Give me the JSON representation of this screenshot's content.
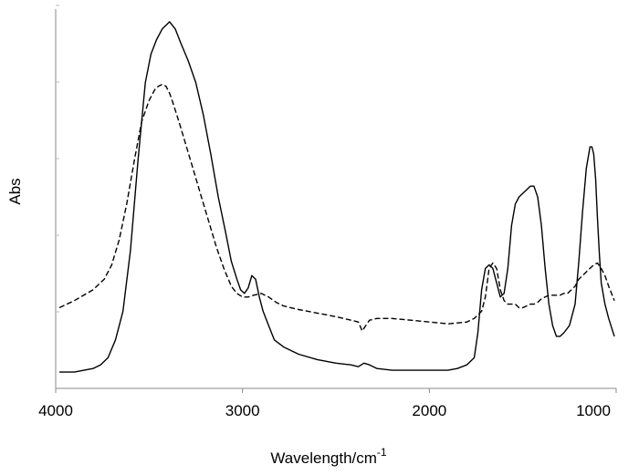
{
  "chart_data": {
    "type": "line",
    "title": "",
    "xlabel": "Wavelength/cm",
    "xlabel_superscript": "-1",
    "ylabel": "Abs",
    "xlim": [
      4000,
      1000
    ],
    "x_reversed": true,
    "x_ticks": [
      "4000",
      "3000",
      "2000",
      "1000"
    ],
    "y_ticks_labeled": false,
    "grid": false,
    "legend": "none",
    "series": [
      {
        "style": "solid",
        "color": "#000000",
        "x": [
          3980,
          3900,
          3800,
          3760,
          3720,
          3680,
          3640,
          3600,
          3560,
          3520,
          3490,
          3460,
          3430,
          3410,
          3390,
          3360,
          3330,
          3290,
          3250,
          3210,
          3170,
          3130,
          3090,
          3060,
          3030,
          3010,
          2990,
          2970,
          2950,
          2930,
          2910,
          2890,
          2860,
          2830,
          2780,
          2700,
          2600,
          2500,
          2420,
          2380,
          2350,
          2320,
          2280,
          2200,
          2100,
          2000,
          1900,
          1850,
          1800,
          1760,
          1740,
          1720,
          1700,
          1680,
          1660,
          1640,
          1620,
          1600,
          1580,
          1560,
          1540,
          1520,
          1500,
          1480,
          1460,
          1440,
          1420,
          1400,
          1380,
          1360,
          1340,
          1320,
          1300,
          1280,
          1250,
          1220,
          1200,
          1180,
          1160,
          1140,
          1130,
          1120,
          1110,
          1100,
          1090,
          1080,
          1060,
          1040,
          1010
        ],
        "y": [
          0.01,
          0.01,
          0.02,
          0.03,
          0.05,
          0.1,
          0.18,
          0.35,
          0.6,
          0.82,
          0.9,
          0.94,
          0.97,
          0.98,
          0.99,
          0.97,
          0.93,
          0.88,
          0.82,
          0.73,
          0.62,
          0.5,
          0.4,
          0.32,
          0.27,
          0.24,
          0.23,
          0.245,
          0.28,
          0.27,
          0.22,
          0.18,
          0.14,
          0.1,
          0.08,
          0.06,
          0.045,
          0.035,
          0.03,
          0.025,
          0.035,
          0.03,
          0.02,
          0.015,
          0.015,
          0.015,
          0.015,
          0.02,
          0.03,
          0.05,
          0.12,
          0.24,
          0.3,
          0.31,
          0.3,
          0.26,
          0.22,
          0.23,
          0.3,
          0.42,
          0.48,
          0.5,
          0.51,
          0.52,
          0.53,
          0.53,
          0.5,
          0.42,
          0.3,
          0.2,
          0.14,
          0.11,
          0.11,
          0.12,
          0.14,
          0.2,
          0.32,
          0.46,
          0.58,
          0.64,
          0.64,
          0.62,
          0.55,
          0.44,
          0.34,
          0.26,
          0.2,
          0.16,
          0.11
        ]
      },
      {
        "style": "dashed",
        "color": "#000000",
        "x": [
          3980,
          3900,
          3800,
          3740,
          3700,
          3660,
          3620,
          3580,
          3540,
          3500,
          3470,
          3450,
          3430,
          3410,
          3390,
          3370,
          3340,
          3300,
          3260,
          3220,
          3180,
          3140,
          3100,
          3060,
          3030,
          3000,
          2970,
          2940,
          2900,
          2860,
          2820,
          2780,
          2700,
          2600,
          2500,
          2420,
          2380,
          2360,
          2340,
          2320,
          2280,
          2200,
          2100,
          2000,
          1900,
          1800,
          1760,
          1720,
          1700,
          1680,
          1660,
          1640,
          1620,
          1600,
          1580,
          1560,
          1540,
          1520,
          1500,
          1480,
          1460,
          1440,
          1420,
          1400,
          1380,
          1360,
          1340,
          1320,
          1300,
          1280,
          1260,
          1240,
          1220,
          1200,
          1180,
          1160,
          1140,
          1120,
          1100,
          1080,
          1060,
          1040,
          1010
        ],
        "y": [
          0.19,
          0.21,
          0.24,
          0.27,
          0.31,
          0.38,
          0.48,
          0.6,
          0.71,
          0.77,
          0.8,
          0.81,
          0.815,
          0.81,
          0.79,
          0.76,
          0.71,
          0.64,
          0.57,
          0.5,
          0.43,
          0.36,
          0.3,
          0.25,
          0.23,
          0.22,
          0.22,
          0.225,
          0.23,
          0.22,
          0.205,
          0.195,
          0.185,
          0.175,
          0.165,
          0.155,
          0.15,
          0.125,
          0.14,
          0.155,
          0.16,
          0.16,
          0.155,
          0.15,
          0.145,
          0.15,
          0.16,
          0.18,
          0.22,
          0.3,
          0.315,
          0.3,
          0.24,
          0.21,
          0.2,
          0.2,
          0.2,
          0.19,
          0.19,
          0.195,
          0.2,
          0.2,
          0.205,
          0.215,
          0.22,
          0.225,
          0.225,
          0.225,
          0.225,
          0.23,
          0.23,
          0.24,
          0.25,
          0.27,
          0.28,
          0.29,
          0.3,
          0.31,
          0.315,
          0.3,
          0.28,
          0.25,
          0.21
        ]
      }
    ]
  }
}
